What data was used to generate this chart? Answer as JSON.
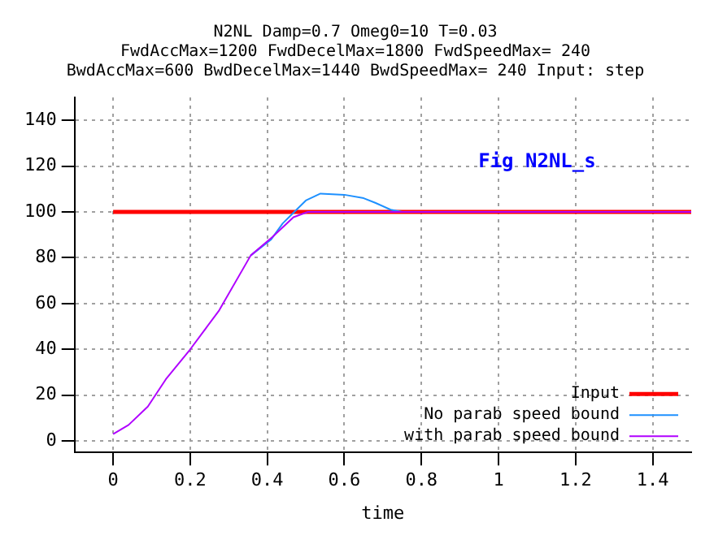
{
  "chart_data": {
    "type": "line",
    "title": "N2NL Damp=0.7 Omeg0=10 T=0.03",
    "subtitle": "FwdAccMax=1200 FwdDecelMax=1800 FwdSpeedMax= 240\nBwdAccMax=600 BwdDecelMax=1440 BwdSpeedMax= 240 Input: step",
    "xlabel": "time",
    "xlim": [
      -0.1,
      1.5
    ],
    "xticks": [
      0,
      0.2,
      0.4,
      0.6,
      0.8,
      1,
      1.2,
      1.4
    ],
    "ylim": [
      -5,
      150
    ],
    "yticks": [
      0,
      20,
      40,
      60,
      80,
      100,
      120,
      140
    ],
    "grid": true,
    "legend": "bottom right",
    "marker": "none",
    "annotations": [
      "Fig N2NL_s"
    ],
    "series": [
      {
        "name": "Input",
        "color": "#ff0000",
        "x": [
          0,
          1.5
        ],
        "values": [
          100,
          100
        ]
      },
      {
        "name": "No parab speed bound",
        "color": "#1e90ff",
        "x": [
          0.357,
          0.41,
          0.44,
          0.47,
          0.5,
          0.538,
          0.6,
          0.65,
          0.68,
          0.72,
          0.75
        ],
        "values": [
          81,
          88,
          95,
          100,
          105,
          108,
          107.5,
          106,
          104,
          101,
          100
        ]
      },
      {
        "name": "with parab speed bound",
        "color": "#b000ff",
        "x": [
          0,
          0.04,
          0.09,
          0.137,
          0.2,
          0.275,
          0.357,
          0.413,
          0.468,
          0.505,
          1.5
        ],
        "values": [
          3,
          7,
          15,
          27,
          40,
          57,
          81,
          89,
          97.7,
          100,
          100
        ]
      }
    ]
  }
}
